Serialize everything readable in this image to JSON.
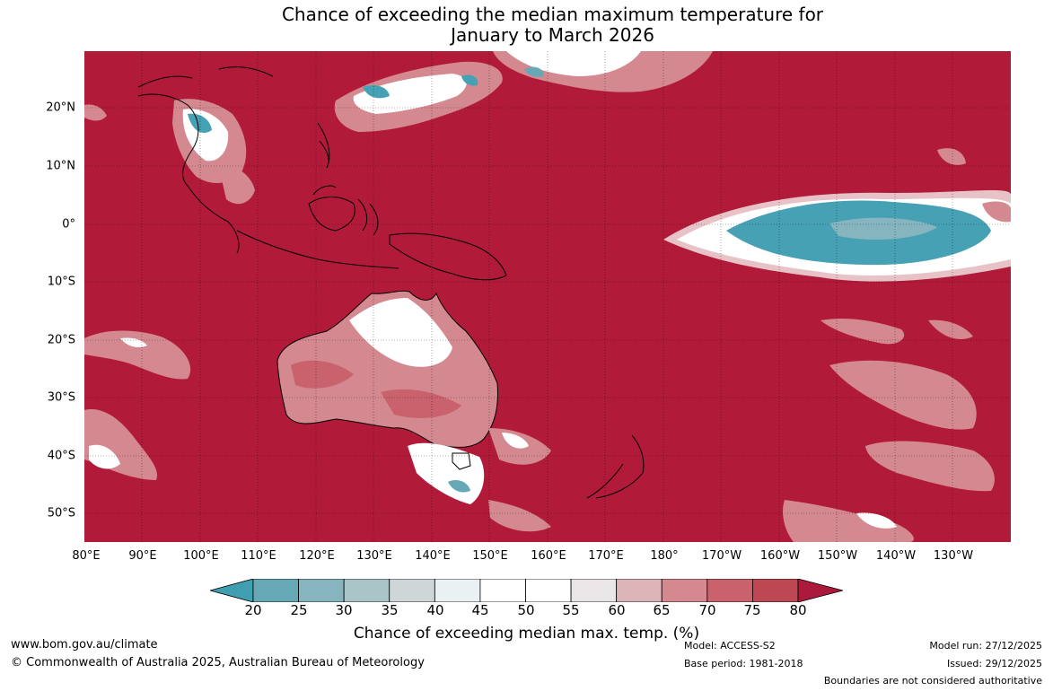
{
  "title_line1": "Chance of exceeding the median maximum temperature for",
  "title_line2": "January to March 2026",
  "lon_labels": [
    "80°E",
    "90°E",
    "100°E",
    "110°E",
    "120°E",
    "130°E",
    "140°E",
    "150°E",
    "160°E",
    "170°E",
    "180°",
    "170°W",
    "160°W",
    "150°W",
    "140°W",
    "130°W"
  ],
  "lat_labels": [
    "20°N",
    "10°N",
    "0°",
    "10°S",
    "20°S",
    "30°S",
    "40°S",
    "50°S"
  ],
  "colorbar": {
    "ticks": [
      "20",
      "25",
      "30",
      "35",
      "40",
      "45",
      "50",
      "55",
      "60",
      "65",
      "70",
      "75",
      "80"
    ],
    "colors": [
      "#3f9fb0",
      "#66a8b5",
      "#86b5c0",
      "#aac5c8",
      "#cfd6d8",
      "#eaf1f3",
      "#ffffff",
      "#ffffff",
      "#eae6e7",
      "#ddb5b9",
      "#d48990",
      "#c9626d",
      "#bd4752",
      "#ab1a3b"
    ],
    "label": "Chance of exceeding median max. temp. (%)"
  },
  "colors": {
    "background_red": "#b11a39",
    "teal": "#45a1b3",
    "pink": "#d9868f"
  },
  "footer": {
    "website": "www.bom.gov.au/climate",
    "copyright": "© Commonwealth of Australia 2025, Australian Bureau of Meteorology",
    "model": "Model: ACCESS-S2",
    "base_period": "Base period: 1981-2018",
    "model_run": "Model run: 27/12/2025",
    "issued": "Issued: 29/12/2025",
    "disclaimer": "Boundaries are not considered authoritative"
  }
}
